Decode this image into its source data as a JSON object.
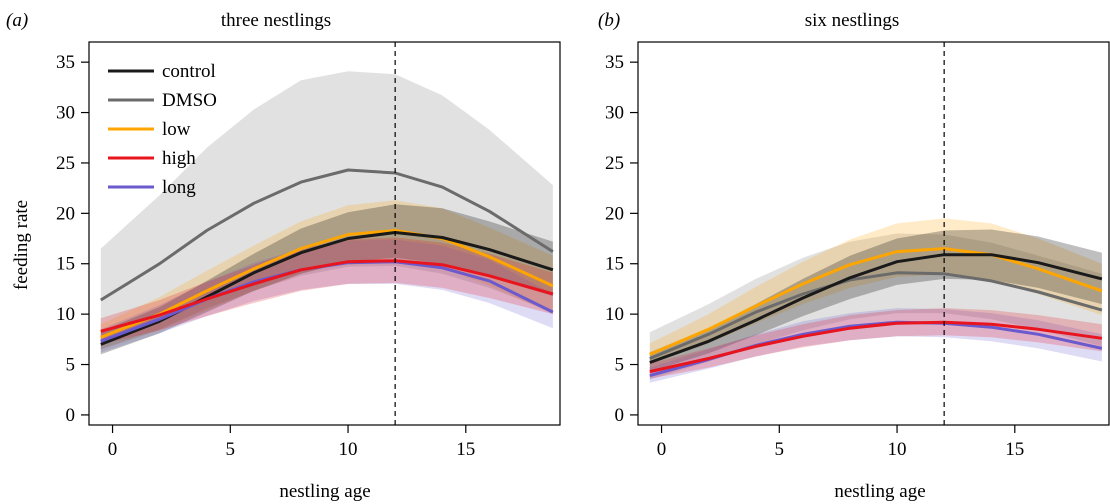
{
  "colors": {
    "control": "#1a1a1a",
    "DMSO": "#6b6b6b",
    "low": "#ffa500",
    "high": "#e8141e",
    "long": "#6a5acd"
  },
  "chart_data": [
    {
      "type": "line",
      "panel_label": "(a)",
      "title": "three nestlings",
      "xlabel": "nestling age",
      "ylabel": "feeding rate",
      "xlim": [
        -1,
        19
      ],
      "ylim": [
        -1,
        37
      ],
      "xticks": [
        0,
        5,
        10,
        15
      ],
      "yticks": [
        0,
        5,
        10,
        15,
        20,
        25,
        30,
        35
      ],
      "vline_x": 12,
      "legend_position": "top-left",
      "series": [
        {
          "name": "control",
          "x": [
            -0.5,
            2,
            4,
            6,
            8,
            10,
            12,
            14,
            16,
            18.7
          ],
          "y": [
            7.0,
            9.3,
            11.7,
            14.1,
            16.1,
            17.5,
            18.1,
            17.6,
            16.4,
            14.4
          ],
          "lower": [
            6.0,
            8.1,
            10.2,
            12.3,
            14.0,
            15.2,
            15.6,
            15.0,
            13.7,
            11.8
          ],
          "upper": [
            8.3,
            10.7,
            13.3,
            16.0,
            18.5,
            20.1,
            20.9,
            20.5,
            19.2,
            17.2
          ]
        },
        {
          "name": "DMSO",
          "x": [
            -0.5,
            2,
            4,
            6,
            8,
            10,
            12,
            14,
            16,
            18.7
          ],
          "y": [
            11.4,
            15.0,
            18.3,
            21.0,
            23.1,
            24.3,
            24.0,
            22.6,
            20.2,
            16.2
          ],
          "lower": [
            6.5,
            8.5,
            10.6,
            12.3,
            13.8,
            14.7,
            14.8,
            14.0,
            12.6,
            10.2
          ],
          "upper": [
            16.5,
            21.8,
            26.5,
            30.3,
            33.2,
            34.1,
            33.8,
            31.7,
            28.3,
            22.8
          ]
        },
        {
          "name": "low",
          "x": [
            -0.5,
            2,
            4,
            6,
            8,
            10,
            12,
            14,
            16,
            18.7
          ],
          "y": [
            7.7,
            10.0,
            12.3,
            14.5,
            16.5,
            17.9,
            18.3,
            17.5,
            15.7,
            12.8
          ],
          "lower": [
            6.5,
            8.4,
            10.4,
            12.3,
            14.0,
            15.2,
            15.5,
            14.6,
            12.8,
            10.0
          ],
          "upper": [
            9.0,
            11.7,
            14.3,
            16.8,
            19.2,
            20.8,
            21.3,
            20.5,
            18.6,
            15.8
          ]
        },
        {
          "name": "high",
          "x": [
            -0.5,
            2,
            4,
            6,
            8,
            10,
            12,
            14,
            16,
            18.7
          ],
          "y": [
            8.3,
            9.9,
            11.5,
            13.0,
            14.4,
            15.2,
            15.3,
            14.9,
            13.8,
            12.0
          ],
          "lower": [
            7.0,
            8.4,
            9.8,
            11.1,
            12.3,
            13.0,
            13.1,
            12.6,
            11.6,
            10.0
          ],
          "upper": [
            9.6,
            11.4,
            13.2,
            14.9,
            16.5,
            17.4,
            17.6,
            17.1,
            16.0,
            14.1
          ]
        },
        {
          "name": "long",
          "x": [
            -0.5,
            2,
            4,
            6,
            8,
            10,
            12,
            14,
            16,
            18.7
          ],
          "y": [
            7.3,
            9.5,
            11.5,
            13.2,
            14.4,
            15.1,
            15.2,
            14.6,
            13.3,
            10.2
          ],
          "lower": [
            6.2,
            8.1,
            9.8,
            11.3,
            12.4,
            13.0,
            13.0,
            12.4,
            11.1,
            8.6
          ],
          "upper": [
            8.5,
            10.9,
            13.2,
            15.1,
            16.5,
            17.3,
            17.4,
            16.8,
            15.4,
            12.0
          ]
        }
      ]
    },
    {
      "type": "line",
      "panel_label": "(b)",
      "title": "six nestlings",
      "xlabel": "nestling age",
      "ylabel": "",
      "xlim": [
        -1,
        19
      ],
      "ylim": [
        -1,
        37
      ],
      "xticks": [
        0,
        5,
        10,
        15
      ],
      "yticks": [
        0,
        5,
        10,
        15,
        20,
        25,
        30,
        35
      ],
      "vline_x": 12,
      "series": [
        {
          "name": "control",
          "x": [
            -0.5,
            2,
            4,
            6,
            8,
            10,
            12,
            14,
            16,
            18.7
          ],
          "y": [
            5.2,
            7.3,
            9.4,
            11.6,
            13.6,
            15.2,
            15.9,
            15.9,
            15.1,
            13.5
          ],
          "lower": [
            4.3,
            6.1,
            7.9,
            9.8,
            11.5,
            12.9,
            13.5,
            13.4,
            12.6,
            11.0
          ],
          "upper": [
            6.2,
            8.6,
            11.0,
            13.5,
            15.8,
            17.5,
            18.3,
            18.4,
            17.7,
            16.1
          ]
        },
        {
          "name": "DMSO",
          "x": [
            -0.5,
            2,
            4,
            6,
            8,
            10,
            12,
            14,
            16,
            18.7
          ],
          "y": [
            5.6,
            8.0,
            10.2,
            12.0,
            13.4,
            14.1,
            14.0,
            13.3,
            12.2,
            10.4
          ],
          "lower": [
            3.5,
            5.3,
            7.0,
            8.4,
            9.5,
            10.1,
            10.1,
            9.5,
            8.5,
            6.8
          ],
          "upper": [
            8.2,
            11.0,
            13.5,
            15.6,
            17.2,
            18.0,
            17.9,
            17.1,
            15.8,
            14.0
          ]
        },
        {
          "name": "low",
          "x": [
            -0.5,
            2,
            4,
            6,
            8,
            10,
            12,
            14,
            16,
            18.7
          ],
          "y": [
            6.0,
            8.5,
            10.8,
            13.0,
            14.9,
            16.2,
            16.5,
            15.9,
            14.5,
            12.3
          ],
          "lower": [
            5.0,
            7.1,
            9.1,
            11.0,
            12.6,
            13.7,
            13.9,
            13.3,
            12.0,
            9.9
          ],
          "upper": [
            7.1,
            10.0,
            12.7,
            15.2,
            17.4,
            19.0,
            19.5,
            19.0,
            17.5,
            15.0
          ]
        },
        {
          "name": "high",
          "x": [
            -0.5,
            2,
            4,
            6,
            8,
            10,
            12,
            14,
            16,
            18.7
          ],
          "y": [
            4.3,
            5.6,
            6.8,
            7.8,
            8.6,
            9.1,
            9.2,
            9.0,
            8.5,
            7.6
          ],
          "lower": [
            3.6,
            4.7,
            5.8,
            6.7,
            7.4,
            7.8,
            7.9,
            7.7,
            7.2,
            6.3
          ],
          "upper": [
            5.1,
            6.6,
            7.9,
            9.0,
            9.9,
            10.4,
            10.6,
            10.4,
            9.9,
            9.0
          ]
        },
        {
          "name": "long",
          "x": [
            -0.5,
            2,
            4,
            6,
            8,
            10,
            12,
            14,
            16,
            18.7
          ],
          "y": [
            3.9,
            5.5,
            6.9,
            8.0,
            8.8,
            9.2,
            9.1,
            8.7,
            8.0,
            6.6
          ],
          "lower": [
            3.2,
            4.6,
            5.8,
            6.8,
            7.4,
            7.8,
            7.7,
            7.3,
            6.6,
            5.3
          ],
          "upper": [
            4.7,
            6.5,
            8.0,
            9.3,
            10.1,
            10.6,
            10.5,
            10.1,
            9.4,
            8.0
          ]
        }
      ]
    }
  ]
}
